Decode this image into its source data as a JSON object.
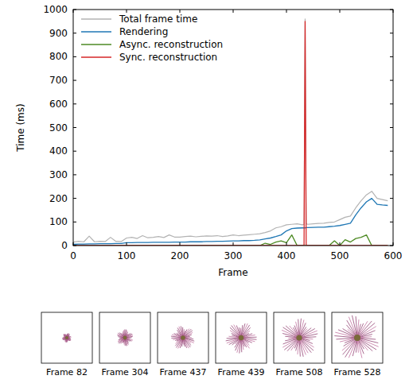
{
  "chart_data": {
    "type": "line",
    "x_label": "Frame",
    "y_label": "Time (ms)",
    "xlim": [
      0,
      600
    ],
    "ylim": [
      0,
      1000
    ],
    "xticks": [
      0,
      100,
      200,
      300,
      400,
      500,
      600
    ],
    "yticks": [
      0,
      100,
      200,
      300,
      400,
      500,
      600,
      700,
      800,
      900,
      1000
    ],
    "legend": "upper left",
    "grid": false,
    "x": [
      0,
      10,
      20,
      30,
      40,
      50,
      60,
      70,
      80,
      90,
      100,
      110,
      120,
      130,
      140,
      150,
      160,
      170,
      180,
      190,
      200,
      210,
      220,
      230,
      240,
      250,
      260,
      270,
      280,
      290,
      300,
      310,
      320,
      330,
      340,
      350,
      360,
      370,
      380,
      390,
      400,
      410,
      420,
      430,
      433,
      435,
      437,
      440,
      450,
      460,
      470,
      480,
      490,
      500,
      510,
      520,
      530,
      540,
      550,
      560,
      570,
      580,
      590
    ],
    "series": [
      {
        "name": "Total frame time",
        "color": "#b3b3b3",
        "values": [
          15,
          18,
          16,
          40,
          16,
          18,
          17,
          35,
          18,
          17,
          32,
          35,
          30,
          42,
          33,
          35,
          38,
          34,
          45,
          36,
          36,
          38,
          40,
          37,
          39,
          41,
          40,
          42,
          38,
          41,
          45,
          42,
          44,
          46,
          48,
          50,
          55,
          62,
          75,
          80,
          88,
          90,
          92,
          88,
          90,
          960,
          92,
          90,
          92,
          94,
          95,
          98,
          100,
          110,
          120,
          125,
          160,
          190,
          215,
          230,
          200,
          195,
          190
        ]
      },
      {
        "name": "Rendering",
        "color": "#1f77b4",
        "values": [
          5,
          6,
          6,
          7,
          7,
          8,
          8,
          8,
          9,
          9,
          12,
          12,
          13,
          13,
          13,
          14,
          14,
          14,
          14,
          15,
          15,
          15,
          16,
          16,
          16,
          17,
          17,
          18,
          18,
          19,
          20,
          20,
          21,
          21,
          22,
          24,
          28,
          32,
          38,
          45,
          62,
          72,
          74,
          75,
          75,
          75,
          76,
          76,
          77,
          78,
          78,
          80,
          82,
          85,
          90,
          95,
          130,
          160,
          185,
          200,
          175,
          172,
          170
        ]
      },
      {
        "name": "Async. reconstruction",
        "color": "#4d8a23",
        "values": [
          0,
          0,
          0,
          0,
          0,
          0,
          0,
          0,
          0,
          0,
          0,
          0,
          0,
          0,
          0,
          0,
          0,
          0,
          0,
          0,
          0,
          0,
          0,
          0,
          0,
          0,
          0,
          0,
          0,
          0,
          0,
          0,
          0,
          0,
          0,
          0,
          10,
          5,
          15,
          20,
          12,
          45,
          0,
          0,
          0,
          0,
          0,
          0,
          0,
          0,
          0,
          0,
          20,
          0,
          25,
          15,
          30,
          35,
          45,
          0,
          0,
          0,
          0
        ]
      },
      {
        "name": "Sync. reconstruction",
        "color": "#d62728",
        "values": [
          0,
          0,
          0,
          0,
          0,
          0,
          0,
          0,
          0,
          0,
          0,
          0,
          0,
          0,
          0,
          0,
          0,
          0,
          0,
          0,
          0,
          0,
          0,
          0,
          0,
          0,
          0,
          0,
          0,
          0,
          0,
          0,
          0,
          0,
          0,
          0,
          0,
          0,
          0,
          0,
          0,
          0,
          0,
          0,
          0,
          950,
          0,
          0,
          0,
          0,
          0,
          0,
          0,
          0,
          0,
          0,
          0,
          0,
          0,
          0,
          0,
          0,
          0
        ]
      }
    ]
  },
  "thumbnails": [
    "Frame 82",
    "Frame 304",
    "Frame 437",
    "Frame 439",
    "Frame 508",
    "Frame 528"
  ]
}
